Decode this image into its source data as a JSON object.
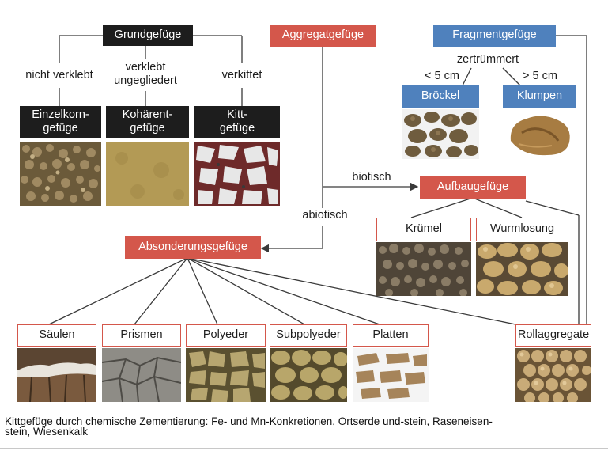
{
  "headers": {
    "grundgefuege": "Grundgefüge",
    "aggregatgefuege": "Aggregatgefüge",
    "fragmentgefuege": "Fragmentgefüge",
    "aufbaugefuege": "Aufbaugefüge",
    "absonderungsgefuege": "Absonderungsgefüge"
  },
  "grund_types": {
    "einzelkorn": "Einzelkorn-\ngefüge",
    "kohaerent": "Kohärent-\ngefüge",
    "kitt": "Kitt-\ngefüge"
  },
  "grund_edges": {
    "nicht_verklebt": "nicht verklebt",
    "verklebt": "verklebt\nungegliedert",
    "verkittet": "verkittet"
  },
  "fragment": {
    "zertruemmert": "zertrümmert",
    "lt5": "< 5 cm",
    "gt5": "> 5 cm",
    "broeckel": "Bröckel",
    "klumpen": "Klumpen"
  },
  "aggregat_edges": {
    "biotisch": "biotisch",
    "abiotisch": "abiotisch"
  },
  "aufbau_types": {
    "kruemel": "Krümel",
    "wurmlosung": "Wurmlosung"
  },
  "absonderung_types": {
    "saeulen": "Säulen",
    "prismen": "Prismen",
    "polyeder": "Polyeder",
    "subpolyeder": "Subpolyeder",
    "platten": "Platten",
    "rollaggregate": "Rollaggregate"
  },
  "caption": "Kittgefüge durch chemische Zementierung: Fe- und Mn-Konkretionen, Ortserde und-stein, Raseneisen-\nstein, Wiesenkalk",
  "colors": {
    "black_box": "#1d1d1d",
    "red_box": "#d4574b",
    "blue_box": "#4f81bd",
    "line": "#3a3a3a"
  }
}
